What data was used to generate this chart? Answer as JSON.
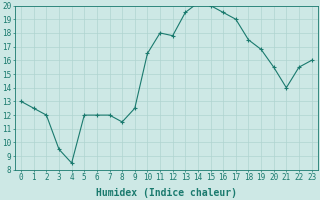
{
  "x": [
    0,
    1,
    2,
    3,
    4,
    5,
    6,
    7,
    8,
    9,
    10,
    11,
    12,
    13,
    14,
    15,
    16,
    17,
    18,
    19,
    20,
    21,
    22,
    23
  ],
  "y": [
    13,
    12.5,
    12,
    9.5,
    8.5,
    12,
    12,
    12,
    11.5,
    12.5,
    16.5,
    18,
    17.8,
    19.5,
    20.2,
    20,
    19.5,
    19,
    17.5,
    16.8,
    15.5,
    14,
    15.5,
    16
  ],
  "line_color": "#1a7a6e",
  "marker": "+",
  "marker_size": 3,
  "marker_lw": 0.8,
  "line_width": 0.8,
  "bg_color": "#cde8e5",
  "grid_color": "#b0d4d0",
  "xlabel": "Humidex (Indice chaleur)",
  "ylim": [
    8,
    20
  ],
  "xlim": [
    -0.5,
    23.5
  ],
  "yticks": [
    8,
    9,
    10,
    11,
    12,
    13,
    14,
    15,
    16,
    17,
    18,
    19,
    20
  ],
  "xticks": [
    0,
    1,
    2,
    3,
    4,
    5,
    6,
    7,
    8,
    9,
    10,
    11,
    12,
    13,
    14,
    15,
    16,
    17,
    18,
    19,
    20,
    21,
    22,
    23
  ],
  "tick_color": "#1a7a6e",
  "label_fontsize": 5.5,
  "xlabel_fontsize": 7
}
